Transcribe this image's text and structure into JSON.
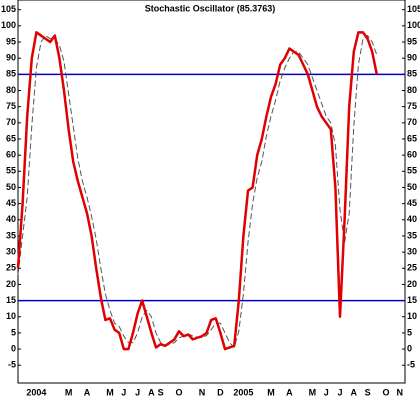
{
  "chart_data": {
    "type": "line",
    "title": "Stochastic Oscillator (85.3763)",
    "categories": [
      null,
      null,
      null,
      null,
      "2004",
      null,
      null,
      null,
      null,
      null,
      null,
      "M",
      null,
      null,
      null,
      "A",
      null,
      null,
      null,
      null,
      "M",
      null,
      null,
      "J",
      null,
      null,
      "J",
      null,
      null,
      "A",
      null,
      "S",
      null,
      null,
      null,
      "O",
      null,
      null,
      null,
      null,
      "N",
      null,
      null,
      null,
      "D",
      null,
      null,
      null,
      null,
      "2005",
      null,
      null,
      null,
      null,
      null,
      "M",
      null,
      null,
      null,
      "A",
      null,
      null,
      null,
      null,
      "M",
      null,
      null,
      "J",
      null,
      null,
      "J",
      null,
      null,
      "A",
      null,
      null,
      "S",
      null,
      null,
      null,
      "O",
      null,
      null,
      "N"
    ],
    "series": [
      {
        "color": "#e00000",
        "values": [
          25,
          45,
          72,
          90,
          98,
          97,
          96,
          95,
          97,
          90,
          80,
          68,
          58,
          52,
          47,
          42,
          35,
          25,
          16,
          9,
          9.5,
          6,
          5,
          0,
          0,
          5,
          11,
          15,
          10,
          5,
          0.5,
          1.5,
          1,
          2,
          3,
          5.5,
          4,
          4.5,
          3,
          3.5,
          4,
          5,
          9,
          9.5,
          5,
          0,
          0.5,
          1,
          15,
          35,
          49,
          50,
          60,
          65,
          72,
          78,
          82,
          88,
          90,
          93,
          92,
          91,
          88,
          85,
          80,
          75,
          72,
          70,
          68,
          50,
          10,
          40,
          75,
          92,
          98,
          98,
          96,
          92,
          85,
          null,
          null,
          null,
          null,
          null
        ]
      },
      {
        "color": "#555555",
        "dashed": true,
        "values": [
          23,
          35,
          47,
          69,
          87,
          95,
          97,
          96,
          96,
          94,
          89,
          79,
          69,
          59,
          52,
          47,
          41,
          34,
          25,
          17,
          12,
          8,
          7,
          4,
          2,
          2,
          5,
          10,
          12,
          10,
          5,
          2,
          1,
          1.5,
          2,
          3.5,
          4,
          4.7,
          4,
          3.7,
          3.5,
          4.2,
          6,
          8,
          8,
          5,
          2,
          0.5,
          5.5,
          17,
          33,
          45,
          53,
          58,
          66,
          72,
          77,
          83,
          87,
          90,
          92,
          92,
          90,
          88,
          84,
          80,
          76,
          72,
          70,
          63,
          43,
          33,
          42,
          69,
          88,
          96,
          97,
          95,
          91,
          null,
          null,
          null,
          null,
          null
        ]
      }
    ],
    "hlines": [
      {
        "value": 85,
        "color": "#0000c0"
      },
      {
        "value": 15,
        "color": "#0000c0"
      }
    ],
    "ylim": [
      -10.5,
      108
    ],
    "yticks": [
      -5,
      0,
      5,
      10,
      15,
      20,
      25,
      30,
      35,
      40,
      45,
      50,
      55,
      60,
      65,
      70,
      75,
      80,
      85,
      90,
      95,
      100,
      105
    ]
  }
}
